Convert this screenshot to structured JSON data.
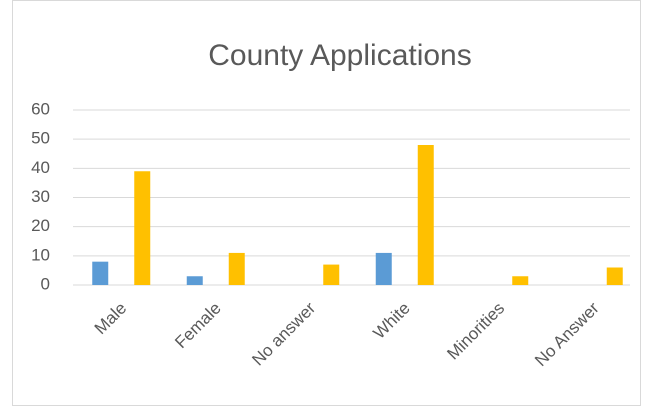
{
  "chart_data": {
    "type": "bar",
    "title": "County Applications",
    "categories": [
      "Male",
      "Female",
      "No answer",
      "White",
      "Minorities",
      "No Answer"
    ],
    "series": [
      {
        "color": "#5b9bd5",
        "values": [
          8,
          3,
          0,
          11,
          0,
          0
        ]
      },
      {
        "color": "#ffc000",
        "values": [
          39,
          11,
          7,
          48,
          3,
          6
        ]
      }
    ],
    "ylim": [
      0,
      60
    ],
    "yticks": [
      0,
      10,
      20,
      30,
      40,
      50,
      60
    ],
    "grid": true
  }
}
